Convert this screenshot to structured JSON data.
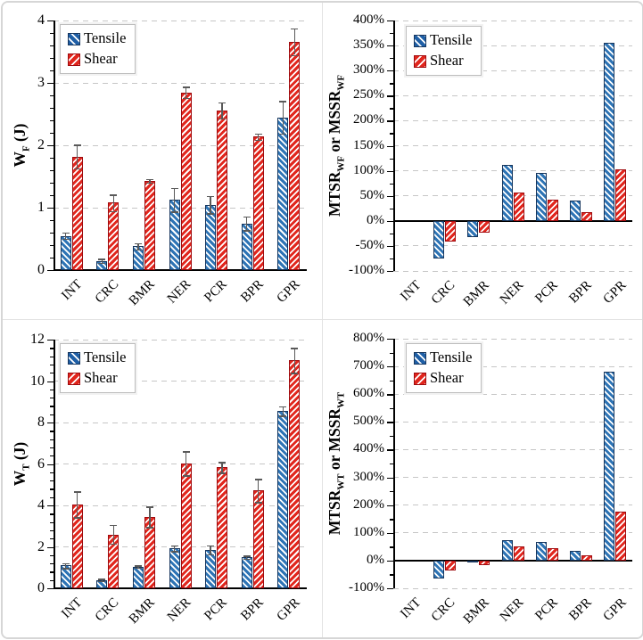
{
  "legend": {
    "tensile_label": "Tensile",
    "shear_label": "Shear"
  },
  "colors": {
    "tensile_fill": "#2E74B5",
    "tensile_border": "#17365D",
    "shear_fill": "#E1261D",
    "shear_border": "#9E0B0F",
    "error_bar": "#595959",
    "gridline": "#C6C6C6",
    "axis": "#000000"
  },
  "categories": [
    "INT",
    "CRC",
    "BMR",
    "NER",
    "PCR",
    "BPR",
    "GPR"
  ],
  "chart_data": [
    {
      "id": "wf",
      "type": "bar",
      "position": "top-left",
      "title": "",
      "ylabel_segments": [
        {
          "text": "W"
        },
        {
          "text": "F",
          "sub": true
        },
        {
          "text": " (J)"
        }
      ],
      "ylabel_plain": "WF (J)",
      "ylim": [
        0,
        4
      ],
      "tick_step": 1,
      "minor_step": 0.2,
      "tick_suffix": "",
      "grid": "dashed",
      "legend_position": "top-left-inside",
      "categories": [
        "INT",
        "CRC",
        "BMR",
        "NER",
        "PCR",
        "BPR",
        "GPR"
      ],
      "series": [
        {
          "name": "Tensile",
          "values": [
            0.55,
            0.15,
            0.38,
            1.13,
            1.05,
            0.75,
            2.45
          ],
          "errors": [
            0.05,
            0.03,
            0.05,
            0.19,
            0.14,
            0.11,
            0.26
          ]
        },
        {
          "name": "Shear",
          "values": [
            1.82,
            1.08,
            1.43,
            2.85,
            2.56,
            2.14,
            3.66
          ],
          "errors": [
            0.19,
            0.13,
            0.03,
            0.09,
            0.13,
            0.05,
            0.21
          ]
        }
      ]
    },
    {
      "id": "mtsr-wf",
      "type": "bar",
      "position": "top-right",
      "title": "",
      "ylabel_segments": [
        {
          "text": "MTSR"
        },
        {
          "text": "WF",
          "sub": true
        },
        {
          "text": " or MSSR"
        },
        {
          "text": "WF",
          "sub": true
        }
      ],
      "ylabel_plain": "MTSRWF or MSSRWF",
      "ylim": [
        -100,
        400
      ],
      "tick_step": 50,
      "minor_step": 25,
      "tick_suffix": "%",
      "grid": "dashed",
      "legend_position": "top-left-inside",
      "skip_zero": true,
      "categories": [
        "INT",
        "CRC",
        "BMR",
        "NER",
        "PCR",
        "BPR",
        "GPR"
      ],
      "series": [
        {
          "name": "Tensile",
          "values": [
            0,
            -75,
            -33,
            112,
            96,
            40,
            355
          ]
        },
        {
          "name": "Shear",
          "values": [
            0,
            -42,
            -23,
            56,
            42,
            18,
            102
          ]
        }
      ]
    },
    {
      "id": "wt",
      "type": "bar",
      "position": "bottom-left",
      "title": "",
      "ylabel_segments": [
        {
          "text": "W"
        },
        {
          "text": "T",
          "sub": true
        },
        {
          "text": " (J)"
        }
      ],
      "ylabel_plain": "WT (J)",
      "ylim": [
        0,
        12
      ],
      "tick_step": 2,
      "minor_step": 0.4,
      "tick_suffix": "",
      "grid": "dashed",
      "legend_position": "top-left-inside",
      "categories": [
        "INT",
        "CRC",
        "BMR",
        "NER",
        "PCR",
        "BPR",
        "GPR"
      ],
      "series": [
        {
          "name": "Tensile",
          "values": [
            1.1,
            0.4,
            1.05,
            1.93,
            1.86,
            1.5,
            8.55
          ],
          "errors": [
            0.12,
            0.06,
            0.06,
            0.13,
            0.22,
            0.08,
            0.22
          ]
        },
        {
          "name": "Shear",
          "values": [
            4.05,
            2.6,
            3.45,
            6.03,
            5.83,
            4.72,
            11.0
          ],
          "errors": [
            0.63,
            0.45,
            0.49,
            0.58,
            0.26,
            0.56,
            0.6
          ]
        }
      ]
    },
    {
      "id": "mtsr-wt",
      "type": "bar",
      "position": "bottom-right",
      "title": "",
      "ylabel_segments": [
        {
          "text": "MTSR"
        },
        {
          "text": "WT",
          "sub": true
        },
        {
          "text": " or MSSR"
        },
        {
          "text": "WT",
          "sub": true
        }
      ],
      "ylabel_plain": "MTSRWT or MSSRWT",
      "ylim": [
        -100,
        800
      ],
      "tick_step": 100,
      "minor_step": 50,
      "tick_suffix": "%",
      "grid": "dashed",
      "legend_position": "top-left-inside",
      "skip_zero": true,
      "categories": [
        "INT",
        "CRC",
        "BMR",
        "NER",
        "PCR",
        "BPR",
        "GPR"
      ],
      "series": [
        {
          "name": "Tensile",
          "values": [
            0,
            -66,
            -8,
            73,
            68,
            35,
            680
          ]
        },
        {
          "name": "Shear",
          "values": [
            0,
            -36,
            -16,
            50,
            46,
            20,
            175
          ]
        }
      ]
    }
  ]
}
